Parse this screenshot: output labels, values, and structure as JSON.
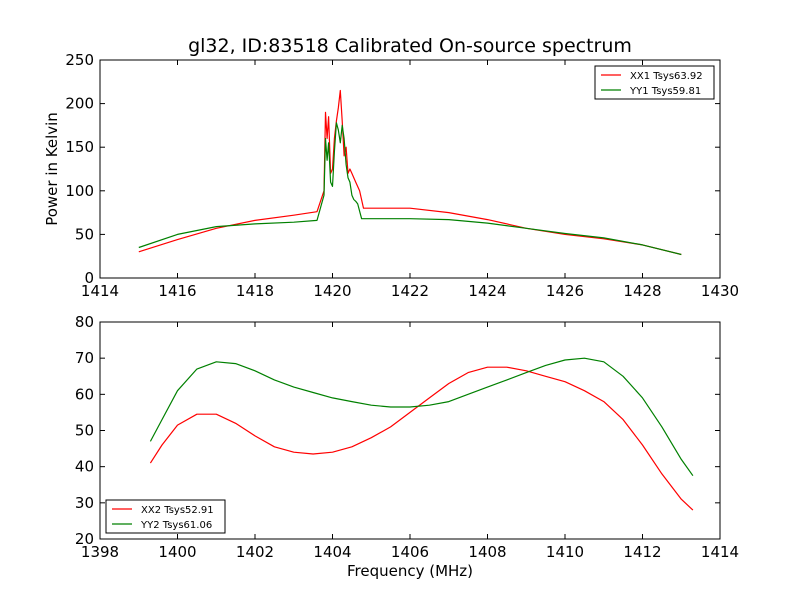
{
  "chart_data": [
    {
      "type": "line",
      "title": "gl32, ID:83518 Calibrated On-source spectrum",
      "xlabel": "",
      "ylabel": "Power in Kelvin",
      "xlim": [
        1414,
        1430
      ],
      "ylim": [
        0,
        250
      ],
      "xticks": [
        "1414",
        "1416",
        "1418",
        "1420",
        "1422",
        "1424",
        "1426",
        "1428",
        "1430"
      ],
      "yticks": [
        "0",
        "50",
        "100",
        "150",
        "200",
        "250"
      ],
      "legend_position": "top-right",
      "series": [
        {
          "name": "XX1 Tsys63.92",
          "color": "#ff0000",
          "x": [
            1415,
            1416,
            1417,
            1418,
            1419,
            1419.6,
            1419.78,
            1419.82,
            1419.86,
            1419.9,
            1419.95,
            1420.0,
            1420.05,
            1420.1,
            1420.15,
            1420.2,
            1420.25,
            1420.3,
            1420.35,
            1420.4,
            1420.45,
            1420.5,
            1420.55,
            1420.6,
            1420.7,
            1420.8,
            1421,
            1422,
            1423,
            1424,
            1425,
            1426,
            1427,
            1428,
            1429
          ],
          "y": [
            30,
            44,
            57,
            66,
            72,
            76,
            100,
            190,
            160,
            185,
            120,
            125,
            160,
            180,
            195,
            215,
            180,
            140,
            150,
            120,
            125,
            120,
            115,
            110,
            100,
            80,
            80,
            80,
            75,
            67,
            57,
            50,
            45,
            38,
            27
          ]
        },
        {
          "name": "YY1 Tsys59.81",
          "color": "#008000",
          "x": [
            1415,
            1416,
            1417,
            1418,
            1419,
            1419.6,
            1419.78,
            1419.82,
            1419.86,
            1419.9,
            1419.95,
            1420.0,
            1420.05,
            1420.1,
            1420.15,
            1420.2,
            1420.25,
            1420.3,
            1420.35,
            1420.4,
            1420.45,
            1420.5,
            1420.55,
            1420.6,
            1420.65,
            1420.75,
            1421,
            1422,
            1423,
            1424,
            1425,
            1426,
            1427,
            1428,
            1429
          ],
          "y": [
            35,
            50,
            59,
            62,
            64,
            66,
            95,
            160,
            135,
            155,
            110,
            105,
            145,
            178,
            170,
            155,
            175,
            160,
            130,
            115,
            110,
            95,
            90,
            88,
            85,
            68,
            68,
            68,
            67,
            63,
            57,
            51,
            46,
            38,
            27
          ]
        }
      ]
    },
    {
      "type": "line",
      "title": "",
      "xlabel": "Frequency (MHz)",
      "ylabel": "",
      "xlim": [
        1398,
        1414
      ],
      "ylim": [
        20,
        80
      ],
      "xticks": [
        "1398",
        "1400",
        "1402",
        "1404",
        "1406",
        "1408",
        "1410",
        "1412",
        "1414"
      ],
      "yticks": [
        "20",
        "30",
        "40",
        "50",
        "60",
        "70",
        "80"
      ],
      "legend_position": "bottom-left",
      "series": [
        {
          "name": "XX2 Tsys52.91",
          "color": "#ff0000",
          "x": [
            1399.3,
            1399.6,
            1400,
            1400.5,
            1401,
            1401.5,
            1402,
            1402.5,
            1403,
            1403.5,
            1404,
            1404.5,
            1405,
            1405.5,
            1406,
            1406.5,
            1407,
            1407.5,
            1408,
            1408.5,
            1409,
            1409.5,
            1410,
            1410.5,
            1411,
            1411.5,
            1412,
            1412.5,
            1413,
            1413.3
          ],
          "y": [
            41,
            46,
            51.5,
            54.5,
            54.5,
            52,
            48.5,
            45.5,
            44,
            43.5,
            44,
            45.5,
            48,
            51,
            55,
            59,
            63,
            66,
            67.5,
            67.5,
            66.5,
            65,
            63.5,
            61,
            58,
            53,
            46,
            38,
            31,
            28
          ]
        },
        {
          "name": "YY2 Tsys61.06",
          "color": "#008000",
          "x": [
            1399.3,
            1399.6,
            1400,
            1400.5,
            1401,
            1401.5,
            1402,
            1402.5,
            1403,
            1403.5,
            1404,
            1404.5,
            1405,
            1405.5,
            1406,
            1406.5,
            1407,
            1407.5,
            1408,
            1408.5,
            1409,
            1409.5,
            1410,
            1410.5,
            1411,
            1411.5,
            1412,
            1412.5,
            1413,
            1413.3
          ],
          "y": [
            47,
            53,
            61,
            67,
            69,
            68.5,
            66.5,
            64,
            62,
            60.5,
            59,
            58,
            57,
            56.5,
            56.5,
            57,
            58,
            60,
            62,
            64,
            66,
            68,
            69.5,
            70,
            69,
            65,
            59,
            51,
            42,
            37.5
          ]
        }
      ]
    }
  ]
}
